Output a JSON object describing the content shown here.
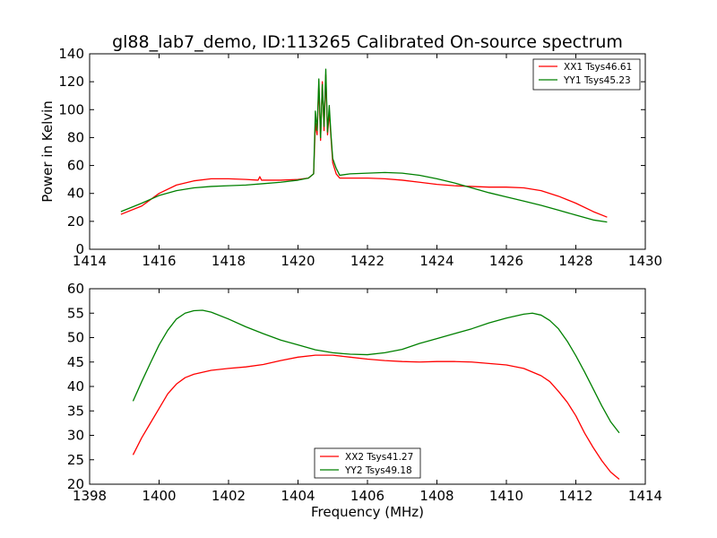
{
  "chart_data": [
    {
      "type": "line",
      "title": "gl88_lab7_demo, ID:113265 Calibrated On-source spectrum",
      "xlabel": "",
      "ylabel": "Power in Kelvin",
      "xlim": [
        1414,
        1430
      ],
      "ylim": [
        0,
        140
      ],
      "xticks": [
        "1414",
        "1416",
        "1418",
        "1420",
        "1422",
        "1424",
        "1426",
        "1428",
        "1430"
      ],
      "yticks": [
        "0",
        "20",
        "40",
        "60",
        "80",
        "100",
        "120",
        "140"
      ],
      "grid": false,
      "legend_position": "top-right",
      "series": [
        {
          "name": "XX1 Tsys46.61",
          "color": "#ff0000",
          "x": [
            1414.9,
            1415.5,
            1416.0,
            1416.5,
            1417.0,
            1417.5,
            1418.0,
            1418.5,
            1418.85,
            1418.9,
            1418.95,
            1419.0,
            1419.5,
            1420.0,
            1420.3,
            1420.45,
            1420.5,
            1420.55,
            1420.6,
            1420.65,
            1420.7,
            1420.75,
            1420.8,
            1420.85,
            1420.9,
            1420.95,
            1421.0,
            1421.1,
            1421.2,
            1421.5,
            1422.0,
            1422.5,
            1423.0,
            1423.5,
            1424.0,
            1424.5,
            1425.0,
            1425.5,
            1426.0,
            1426.5,
            1427.0,
            1427.5,
            1428.0,
            1428.5,
            1428.9
          ],
          "y": [
            25,
            31,
            40,
            46,
            49,
            50.5,
            50.5,
            50,
            49.5,
            52,
            49.5,
            49.5,
            49.5,
            50,
            51,
            54,
            90,
            82,
            118,
            78,
            120,
            85,
            125,
            82,
            98,
            80,
            62,
            54,
            51,
            51,
            51,
            50.5,
            49.5,
            48,
            46.5,
            45.5,
            45,
            44.5,
            44.5,
            44,
            42,
            38,
            33,
            27,
            23
          ]
        },
        {
          "name": "YY1 Tsys45.23",
          "color": "#008000",
          "x": [
            1414.9,
            1415.5,
            1416.0,
            1416.5,
            1417.0,
            1417.5,
            1418.0,
            1418.5,
            1419.0,
            1419.5,
            1420.0,
            1420.3,
            1420.45,
            1420.5,
            1420.55,
            1420.6,
            1420.65,
            1420.7,
            1420.75,
            1420.8,
            1420.85,
            1420.9,
            1420.95,
            1421.0,
            1421.1,
            1421.2,
            1421.5,
            1422.0,
            1422.5,
            1423.0,
            1423.5,
            1424.0,
            1424.5,
            1425.0,
            1425.5,
            1426.0,
            1426.5,
            1427.0,
            1427.5,
            1428.0,
            1428.5,
            1428.9
          ],
          "y": [
            27,
            33,
            38.5,
            42,
            44,
            45,
            45.5,
            46,
            47,
            48,
            49.5,
            51,
            54,
            99,
            85,
            122,
            80,
            118,
            88,
            129,
            84,
            103,
            82,
            65,
            58,
            53,
            54,
            54.5,
            55,
            54.5,
            53,
            50.5,
            47.5,
            44,
            40.5,
            37.5,
            34.5,
            31.5,
            28,
            24.5,
            21,
            19.5
          ]
        }
      ]
    },
    {
      "type": "line",
      "title": "",
      "xlabel": "Frequency (MHz)",
      "ylabel": "",
      "xlim": [
        1398,
        1414
      ],
      "ylim": [
        20,
        60
      ],
      "xticks": [
        "1398",
        "1400",
        "1402",
        "1404",
        "1406",
        "1408",
        "1410",
        "1412",
        "1414"
      ],
      "yticks": [
        "20",
        "25",
        "30",
        "35",
        "40",
        "45",
        "50",
        "55",
        "60"
      ],
      "grid": false,
      "legend_position": "bottom-center",
      "series": [
        {
          "name": "XX2 Tsys41.27",
          "color": "#ff0000",
          "x": [
            1399.25,
            1399.5,
            1399.75,
            1400.0,
            1400.25,
            1400.5,
            1400.75,
            1401.0,
            1401.5,
            1402.0,
            1402.5,
            1403.0,
            1403.5,
            1404.0,
            1404.5,
            1405.0,
            1405.5,
            1406.0,
            1406.5,
            1407.0,
            1407.5,
            1408.0,
            1408.5,
            1409.0,
            1409.5,
            1410.0,
            1410.5,
            1411.0,
            1411.25,
            1411.5,
            1411.75,
            1412.0,
            1412.25,
            1412.5,
            1412.75,
            1413.0,
            1413.25
          ],
          "y": [
            26,
            29.5,
            32.5,
            35.5,
            38.5,
            40.5,
            41.8,
            42.5,
            43.3,
            43.7,
            44,
            44.5,
            45.3,
            46,
            46.4,
            46.4,
            46,
            45.6,
            45.3,
            45.1,
            45,
            45.1,
            45.1,
            45,
            44.7,
            44.4,
            43.7,
            42.2,
            41,
            39,
            36.8,
            34,
            30.5,
            27.5,
            24.8,
            22.5,
            21
          ]
        },
        {
          "name": "YY2 Tsys49.18",
          "color": "#008000",
          "x": [
            1399.25,
            1399.5,
            1399.75,
            1400.0,
            1400.25,
            1400.5,
            1400.75,
            1401.0,
            1401.25,
            1401.5,
            1402.0,
            1402.5,
            1403.0,
            1403.5,
            1404.0,
            1404.5,
            1405.0,
            1405.5,
            1406.0,
            1406.5,
            1407.0,
            1407.5,
            1408.0,
            1408.5,
            1409.0,
            1409.5,
            1410.0,
            1410.5,
            1410.75,
            1411.0,
            1411.25,
            1411.5,
            1411.75,
            1412.0,
            1412.25,
            1412.5,
            1412.75,
            1413.0,
            1413.25
          ],
          "y": [
            37,
            41,
            44.8,
            48.5,
            51.5,
            53.8,
            55,
            55.5,
            55.6,
            55.2,
            53.8,
            52.2,
            50.8,
            49.5,
            48.5,
            47.5,
            46.9,
            46.6,
            46.5,
            46.9,
            47.6,
            48.8,
            49.8,
            50.8,
            51.8,
            53,
            54,
            54.8,
            55,
            54.6,
            53.5,
            51.8,
            49.3,
            46.3,
            43,
            39.5,
            36,
            32.8,
            30.5
          ]
        }
      ]
    }
  ]
}
